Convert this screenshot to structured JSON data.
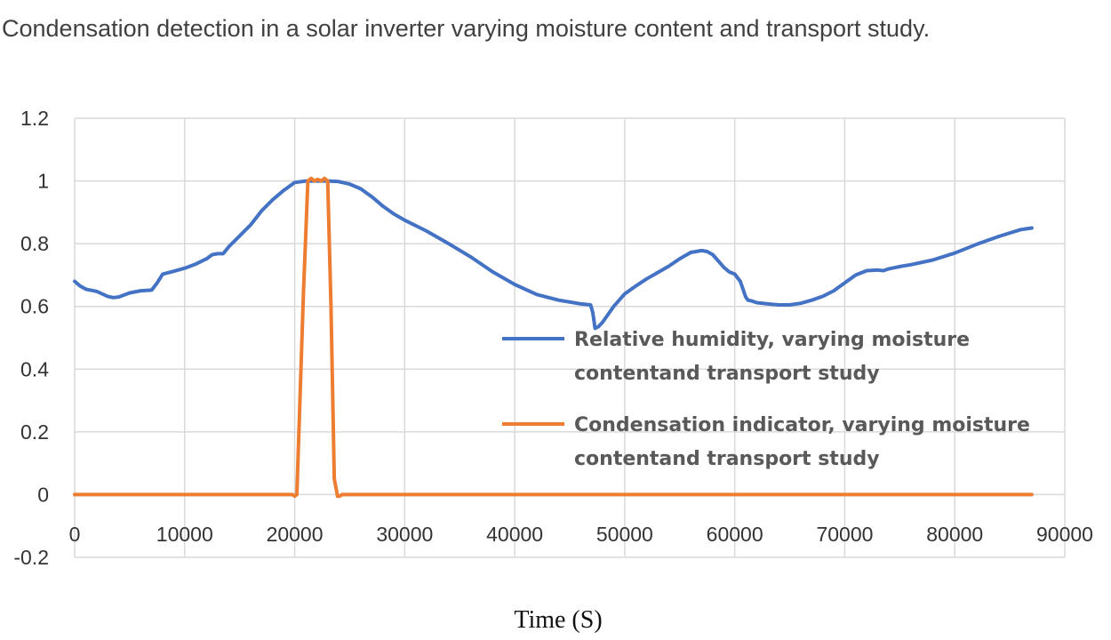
{
  "chart_data": {
    "type": "line",
    "title": "Condensation detection in a solar inverter varying moisture content  and transport study.",
    "xlabel": "Time (S)",
    "ylabel": "",
    "xlim": [
      0,
      90000
    ],
    "ylim": [
      -0.2,
      1.2
    ],
    "x_ticks": [
      0,
      10000,
      20000,
      30000,
      40000,
      50000,
      60000,
      70000,
      80000,
      90000
    ],
    "x_tick_labels": [
      "0",
      "10000",
      "20000",
      "30000",
      "40000",
      "50000",
      "60000",
      "70000",
      "80000",
      "90000"
    ],
    "y_ticks": [
      -0.2,
      0,
      0.2,
      0.4,
      0.6,
      0.8,
      1,
      1.2
    ],
    "y_tick_labels": [
      "-0.2",
      "0",
      "0.2",
      "0.4",
      "0.6",
      "0.8",
      "1",
      "1.2"
    ],
    "grid": true,
    "legend_position": "right",
    "series": [
      {
        "name": "Relative humidity, varying moisture contentand transport study",
        "legend_lines": [
          "Relative humidity, varying moisture",
          "contentand transport study"
        ],
        "color": "#4472c4",
        "x": [
          0,
          500,
          1000,
          2000,
          3000,
          3500,
          4000,
          5000,
          6000,
          7000,
          7500,
          8000,
          9000,
          10000,
          11000,
          12000,
          12500,
          13000,
          13500,
          14000,
          15000,
          16000,
          17000,
          18000,
          19000,
          20000,
          21000,
          21500,
          22000,
          23000,
          24000,
          25000,
          26000,
          27000,
          28000,
          29000,
          30000,
          32000,
          34000,
          36000,
          38000,
          40000,
          42000,
          44000,
          46000,
          46900,
          47100,
          47300,
          47600,
          48000,
          48500,
          49000,
          50000,
          51000,
          52000,
          53000,
          54000,
          55000,
          56000,
          57000,
          57500,
          58000,
          58500,
          59000,
          59500,
          60000,
          60500,
          61000,
          61200,
          61500,
          62000,
          63000,
          64000,
          65000,
          66000,
          67000,
          68000,
          69000,
          70000,
          71000,
          72000,
          73000,
          73500,
          74000,
          75000,
          76000,
          78000,
          80000,
          82000,
          84000,
          86000,
          87000
        ],
        "values": [
          0.68,
          0.665,
          0.655,
          0.648,
          0.632,
          0.628,
          0.63,
          0.643,
          0.65,
          0.652,
          0.675,
          0.703,
          0.712,
          0.722,
          0.735,
          0.752,
          0.765,
          0.768,
          0.768,
          0.79,
          0.825,
          0.86,
          0.905,
          0.94,
          0.97,
          0.995,
          1.0,
          1.0,
          1.0,
          1.0,
          0.998,
          0.99,
          0.975,
          0.95,
          0.92,
          0.895,
          0.875,
          0.84,
          0.8,
          0.758,
          0.71,
          0.67,
          0.638,
          0.62,
          0.608,
          0.605,
          0.58,
          0.53,
          0.535,
          0.55,
          0.575,
          0.6,
          0.64,
          0.665,
          0.688,
          0.708,
          0.728,
          0.752,
          0.772,
          0.778,
          0.775,
          0.765,
          0.745,
          0.725,
          0.71,
          0.703,
          0.68,
          0.63,
          0.62,
          0.618,
          0.612,
          0.608,
          0.605,
          0.605,
          0.61,
          0.62,
          0.632,
          0.65,
          0.675,
          0.7,
          0.714,
          0.716,
          0.714,
          0.72,
          0.727,
          0.733,
          0.748,
          0.77,
          0.798,
          0.823,
          0.845,
          0.85
        ]
      },
      {
        "name": "Condensation indicator, varying moisture contentand transport study",
        "legend_lines": [
          "Condensation indicator, varying moisture",
          "contentand transport study"
        ],
        "color": "#ed7d31",
        "x": [
          0,
          19800,
          20000,
          20200,
          20800,
          21200,
          21500,
          21800,
          22100,
          22400,
          22700,
          23000,
          23300,
          23600,
          23900,
          24100,
          24300,
          24500,
          87000
        ],
        "values": [
          0,
          0,
          -0.005,
          0,
          0.65,
          1.0,
          1.008,
          1.0,
          1.005,
          1.0,
          1.008,
          1.0,
          0.6,
          0.05,
          -0.005,
          -0.005,
          0,
          0,
          0
        ]
      }
    ]
  }
}
